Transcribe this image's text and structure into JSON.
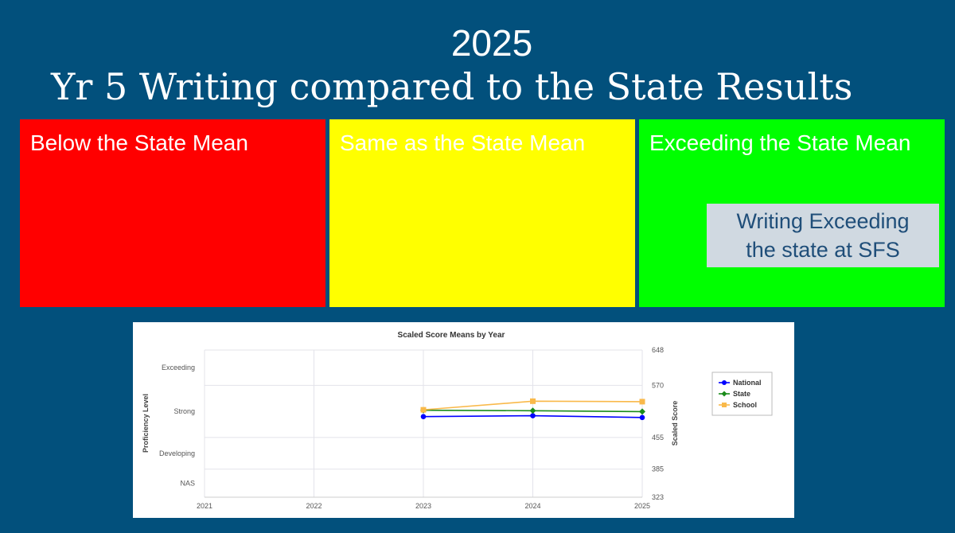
{
  "slide": {
    "year": "2025",
    "title": "Yr 5 Writing compared to the State Results"
  },
  "panels": {
    "below": "Below the State Mean",
    "same": "Same as the State Mean",
    "exceeding": "Exceeding the State Mean"
  },
  "callout": {
    "line1": "Writing Exceeding",
    "line2": "the state at SFS"
  },
  "colors": {
    "background": "#02507c",
    "below": "#ff0000",
    "same": "#ffff00",
    "exceeding": "#00ff00",
    "national": "#0000ff",
    "state": "#1a8c1a",
    "school": "#f9b94a"
  },
  "chart_data": {
    "type": "line",
    "title": "Scaled Score Means by Year",
    "ylabel_left": "Proficiency Level",
    "ylabel_right": "Scaled Score",
    "x": [
      "2021",
      "2022",
      "2023",
      "2024",
      "2025"
    ],
    "ylim": [
      323,
      648
    ],
    "right_ticks": [
      648,
      570,
      455,
      385,
      323
    ],
    "proficiency_levels": [
      "Exceeding",
      "Strong",
      "Developing",
      "NAS"
    ],
    "proficiency_bands": [
      648,
      570,
      455,
      385,
      323
    ],
    "series": [
      {
        "name": "National",
        "color": "#0000ff",
        "x": [
          "2023",
          "2024",
          "2025"
        ],
        "values": [
          501,
          503,
          499
        ]
      },
      {
        "name": "State",
        "color": "#1a8c1a",
        "x": [
          "2023",
          "2024",
          "2025"
        ],
        "values": [
          515,
          514,
          512
        ]
      },
      {
        "name": "School",
        "color": "#f9b94a",
        "x": [
          "2023",
          "2024",
          "2025"
        ],
        "values": [
          516,
          535,
          534
        ]
      }
    ],
    "legend_position": "right"
  }
}
